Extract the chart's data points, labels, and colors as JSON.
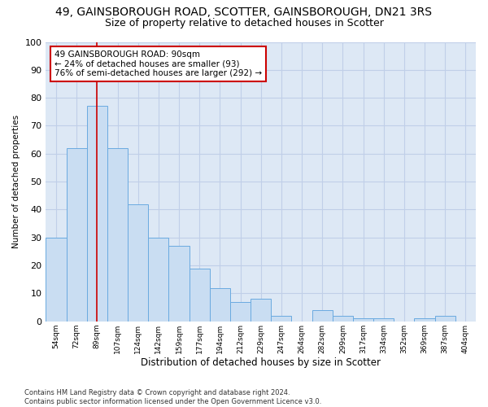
{
  "title_line1": "49, GAINSBOROUGH ROAD, SCOTTER, GAINSBOROUGH, DN21 3RS",
  "title_line2": "Size of property relative to detached houses in Scotter",
  "xlabel": "Distribution of detached houses by size in Scotter",
  "ylabel": "Number of detached properties",
  "categories": [
    "54sqm",
    "72sqm",
    "89sqm",
    "107sqm",
    "124sqm",
    "142sqm",
    "159sqm",
    "177sqm",
    "194sqm",
    "212sqm",
    "229sqm",
    "247sqm",
    "264sqm",
    "282sqm",
    "299sqm",
    "317sqm",
    "334sqm",
    "352sqm",
    "369sqm",
    "387sqm",
    "404sqm"
  ],
  "values": [
    30,
    62,
    77,
    62,
    42,
    30,
    27,
    19,
    12,
    7,
    8,
    2,
    0,
    4,
    2,
    1,
    1,
    0,
    1,
    2,
    0
  ],
  "bar_color": "#c9ddf2",
  "bar_edge_color": "#6aaae0",
  "highlight_bar_index": 2,
  "highlight_line_color": "#cc0000",
  "ylim": [
    0,
    100
  ],
  "yticks": [
    0,
    10,
    20,
    30,
    40,
    50,
    60,
    70,
    80,
    90,
    100
  ],
  "annotation_text_line1": "49 GAINSBOROUGH ROAD: 90sqm",
  "annotation_text_line2": "← 24% of detached houses are smaller (93)",
  "annotation_text_line3": "76% of semi-detached houses are larger (292) →",
  "annotation_box_color": "#ffffff",
  "annotation_border_color": "#cc0000",
  "grid_color": "#c0cfe8",
  "background_color": "#dde8f5",
  "footer_line1": "Contains HM Land Registry data © Crown copyright and database right 2024.",
  "footer_line2": "Contains public sector information licensed under the Open Government Licence v3.0."
}
